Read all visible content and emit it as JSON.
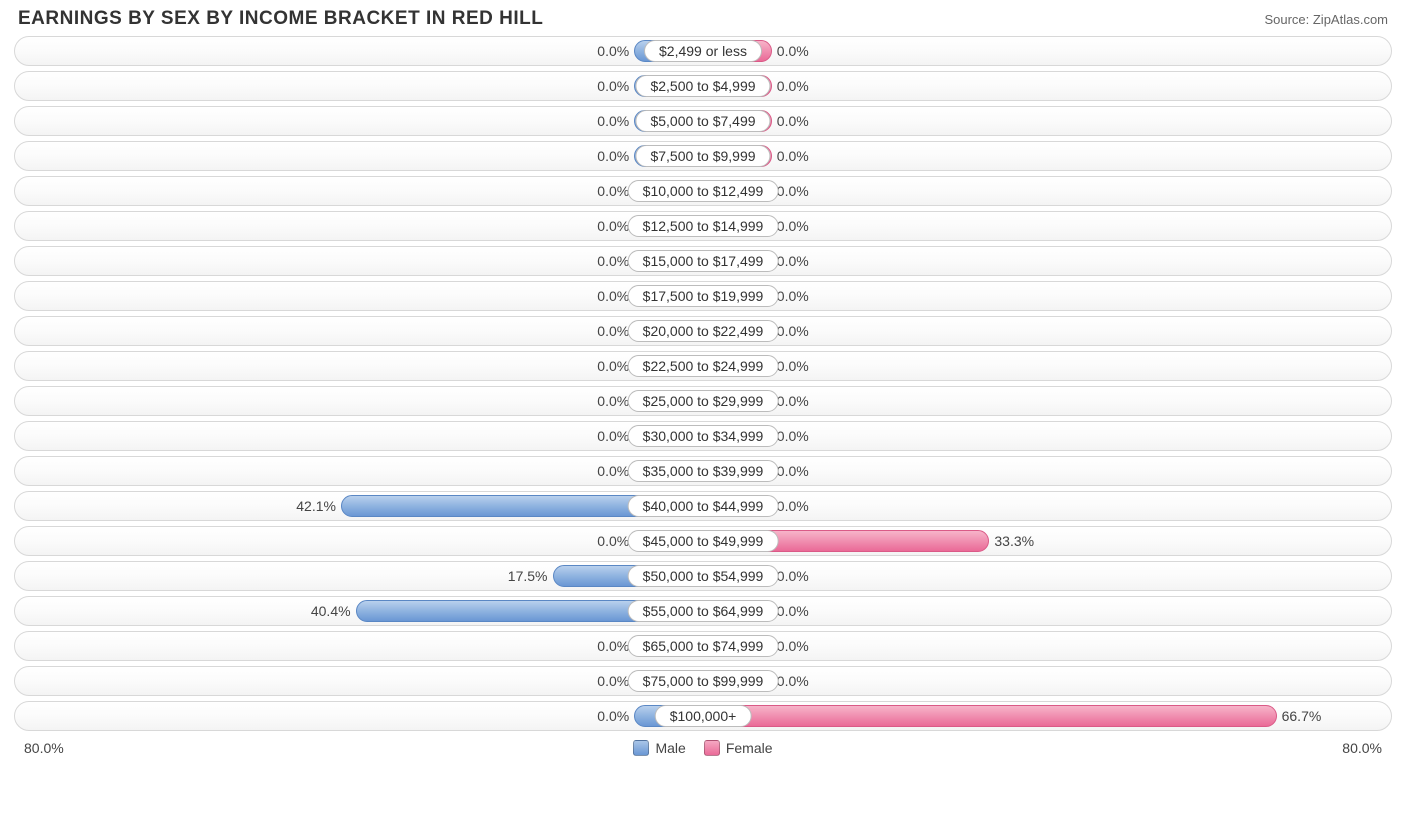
{
  "title": "EARNINGS BY SEX BY INCOME BRACKET IN RED HILL",
  "source": "Source: ZipAtlas.com",
  "chart": {
    "type": "diverging-bar",
    "axis_max_percent": 80.0,
    "axis_label_left": "80.0%",
    "axis_label_right": "80.0%",
    "min_bar_percent": 8.0,
    "colors": {
      "male_fill": "#8fb3e0",
      "male_border": "#5a87c4",
      "female_fill": "#f08fb0",
      "female_border": "#da5a87",
      "row_border": "#d8d8d8",
      "row_bg_top": "#ffffff",
      "row_bg_bottom": "#f4f4f4",
      "text": "#444444",
      "cat_border": "#bcbcbc",
      "background": "#ffffff"
    },
    "font_size_pt": {
      "title": 14,
      "labels": 10,
      "source": 10
    },
    "legend": {
      "male": "Male",
      "female": "Female"
    },
    "rows": [
      {
        "category": "$2,499 or less",
        "male": 0.0,
        "female": 0.0
      },
      {
        "category": "$2,500 to $4,999",
        "male": 0.0,
        "female": 0.0
      },
      {
        "category": "$5,000 to $7,499",
        "male": 0.0,
        "female": 0.0
      },
      {
        "category": "$7,500 to $9,999",
        "male": 0.0,
        "female": 0.0
      },
      {
        "category": "$10,000 to $12,499",
        "male": 0.0,
        "female": 0.0
      },
      {
        "category": "$12,500 to $14,999",
        "male": 0.0,
        "female": 0.0
      },
      {
        "category": "$15,000 to $17,499",
        "male": 0.0,
        "female": 0.0
      },
      {
        "category": "$17,500 to $19,999",
        "male": 0.0,
        "female": 0.0
      },
      {
        "category": "$20,000 to $22,499",
        "male": 0.0,
        "female": 0.0
      },
      {
        "category": "$22,500 to $24,999",
        "male": 0.0,
        "female": 0.0
      },
      {
        "category": "$25,000 to $29,999",
        "male": 0.0,
        "female": 0.0
      },
      {
        "category": "$30,000 to $34,999",
        "male": 0.0,
        "female": 0.0
      },
      {
        "category": "$35,000 to $39,999",
        "male": 0.0,
        "female": 0.0
      },
      {
        "category": "$40,000 to $44,999",
        "male": 42.1,
        "female": 0.0
      },
      {
        "category": "$45,000 to $49,999",
        "male": 0.0,
        "female": 33.3
      },
      {
        "category": "$50,000 to $54,999",
        "male": 17.5,
        "female": 0.0
      },
      {
        "category": "$55,000 to $64,999",
        "male": 40.4,
        "female": 0.0
      },
      {
        "category": "$65,000 to $74,999",
        "male": 0.0,
        "female": 0.0
      },
      {
        "category": "$75,000 to $99,999",
        "male": 0.0,
        "female": 0.0
      },
      {
        "category": "$100,000+",
        "male": 0.0,
        "female": 66.7
      }
    ]
  }
}
